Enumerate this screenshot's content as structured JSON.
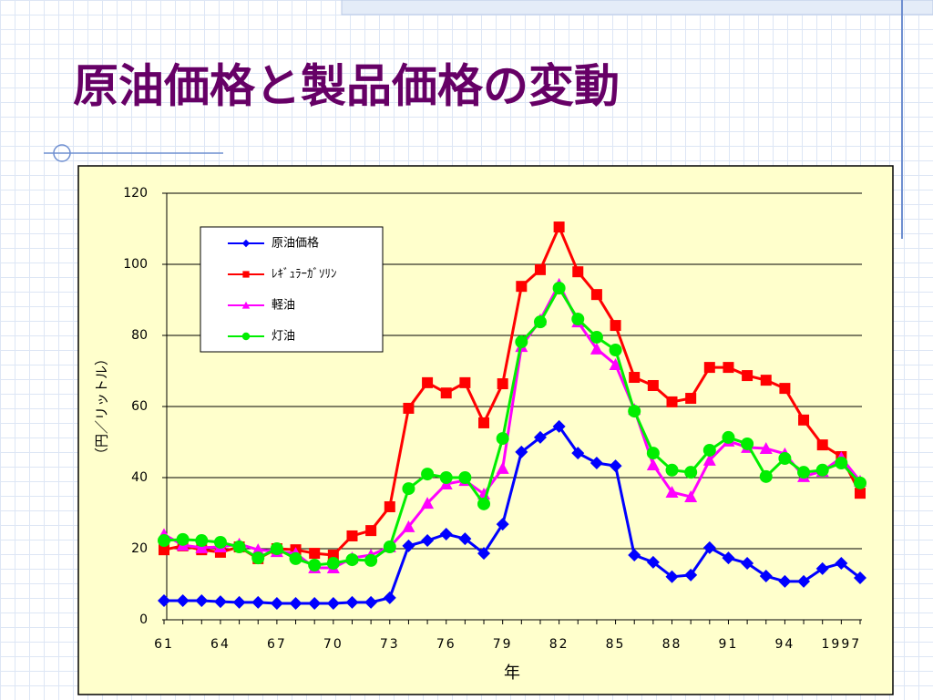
{
  "title": "原油価格と製品価格の変動",
  "chart_data": {
    "type": "line",
    "y_label": "（円／リットル）",
    "x_label": "年",
    "categories": [
      "61",
      null,
      null,
      "64",
      null,
      null,
      "67",
      null,
      null,
      "70",
      null,
      null,
      "73",
      null,
      null,
      "76",
      null,
      null,
      "79",
      null,
      null,
      "82",
      null,
      null,
      "85",
      null,
      null,
      "88",
      null,
      null,
      "91",
      null,
      null,
      "94",
      null,
      null,
      "1997",
      null
    ],
    "ylim": [
      0,
      120
    ],
    "yticks": [
      0,
      20,
      40,
      60,
      80,
      100,
      120
    ],
    "grid": true,
    "series": [
      {
        "name": "原油価格",
        "color": "#0000ff",
        "marker": "diamond",
        "values": [
          5.4,
          5.4,
          5.4,
          5.1,
          4.9,
          4.9,
          4.6,
          4.6,
          4.6,
          4.6,
          4.9,
          4.9,
          6.2,
          20.8,
          22.3,
          24.1,
          22.8,
          18.7,
          26.9,
          47.2,
          51.3,
          54.4,
          46.9,
          44.1,
          43.3,
          18.2,
          16.2,
          12.1,
          12.6,
          20.3,
          17.4,
          15.9,
          12.3,
          10.8,
          10.8,
          14.4,
          15.9,
          11.8
        ]
      },
      {
        "name": "ﾚｷﾞｭﾗｰｶﾞｿﾘﾝ",
        "color": "#ff0000",
        "marker": "square",
        "values": [
          19.7,
          20.8,
          19.7,
          19,
          20.5,
          17.2,
          20,
          19.7,
          18.7,
          18.2,
          23.6,
          25.1,
          31.8,
          59.5,
          66.7,
          63.8,
          66.7,
          55.4,
          66.4,
          93.8,
          98.5,
          110.5,
          97.9,
          91.5,
          82.8,
          68.2,
          65.9,
          61.3,
          62.3,
          71,
          71,
          68.7,
          67.4,
          65.1,
          56.2,
          49.2,
          45.9,
          35.6
        ]
      },
      {
        "name": "軽油",
        "color": "#ff00ff",
        "marker": "triangle",
        "values": [
          24,
          21,
          20.3,
          20.5,
          21.3,
          19.7,
          19.2,
          18.7,
          14.6,
          14.6,
          17.4,
          18.2,
          20.5,
          26.2,
          32.8,
          38.2,
          39.2,
          35.4,
          42.6,
          76.9,
          84.4,
          94.4,
          83.8,
          76.2,
          71.8,
          59.2,
          43.6,
          35.9,
          34.6,
          44.9,
          50.3,
          48.5,
          48.2,
          46.7,
          40.3,
          41.8,
          45.6,
          39
        ]
      },
      {
        "name": "灯油",
        "color": "#00ee00",
        "marker": "circle",
        "values": [
          22.3,
          22.6,
          22.3,
          21.8,
          20.5,
          17.4,
          20,
          17.2,
          15.4,
          15.9,
          16.9,
          16.7,
          20.5,
          36.9,
          41,
          40,
          40,
          32.6,
          51,
          78.2,
          83.8,
          93.3,
          84.6,
          79.5,
          75.9,
          58.7,
          46.9,
          42.1,
          41.5,
          47.7,
          51.3,
          49.5,
          40.3,
          45.4,
          41.5,
          42.1,
          44.1,
          38.5
        ]
      }
    ]
  }
}
